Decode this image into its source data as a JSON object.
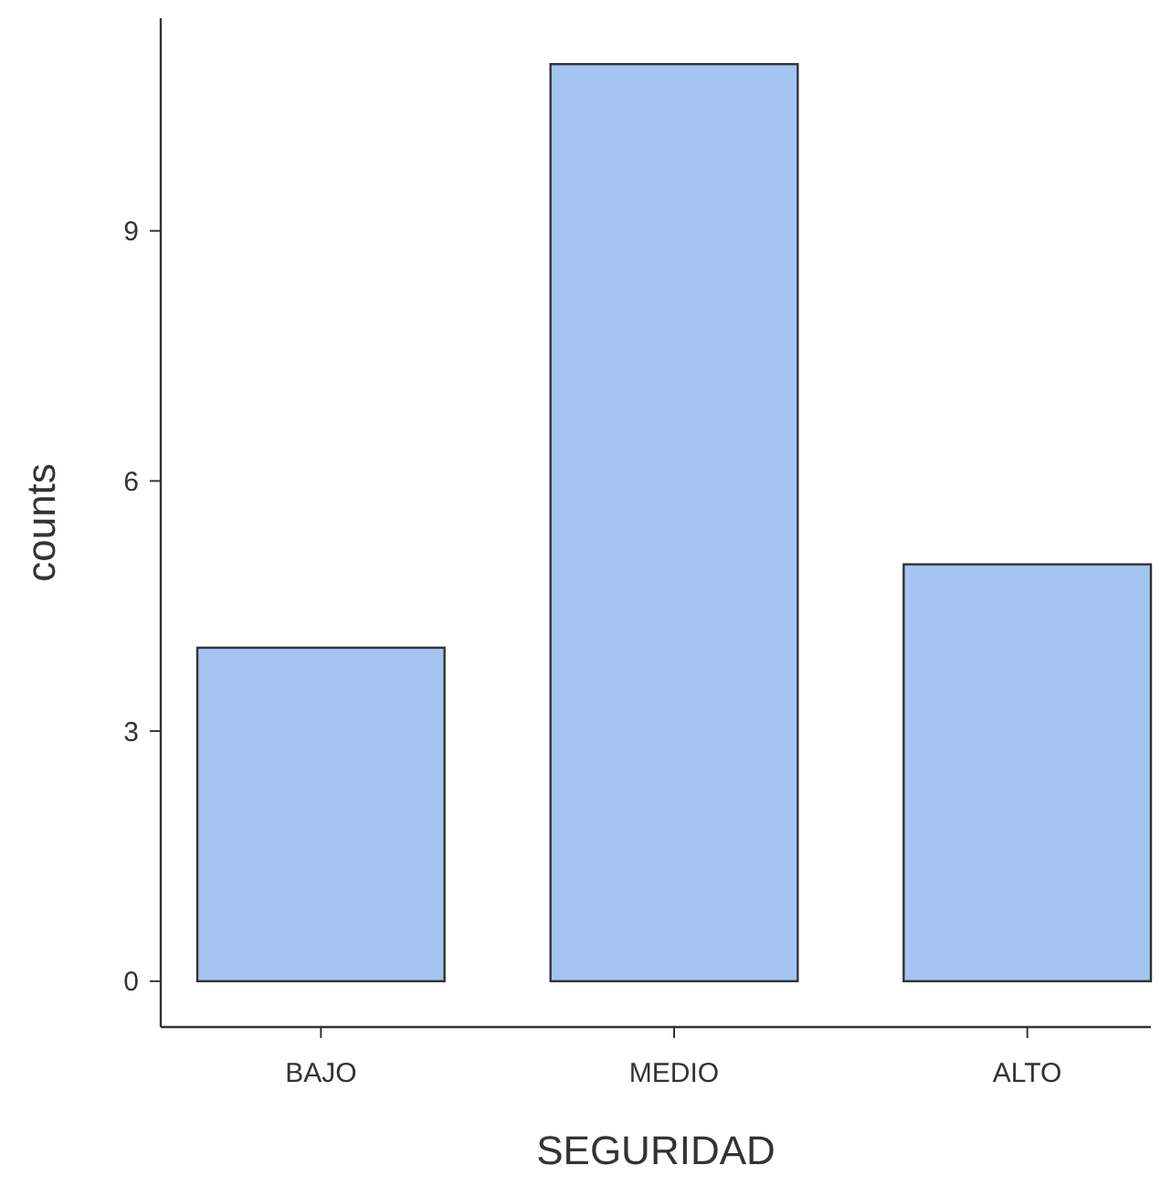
{
  "chart_data": {
    "type": "bar",
    "xlabel": "SEGURIDAD",
    "ylabel": "counts",
    "categories": [
      "BAJO",
      "MEDIO",
      "ALTO"
    ],
    "values": [
      4,
      11,
      5
    ],
    "color": "#a4c4f2",
    "ylim": [
      -0.55,
      11.55
    ],
    "yticks": [
      0,
      3,
      6,
      9
    ],
    "grid": false
  }
}
